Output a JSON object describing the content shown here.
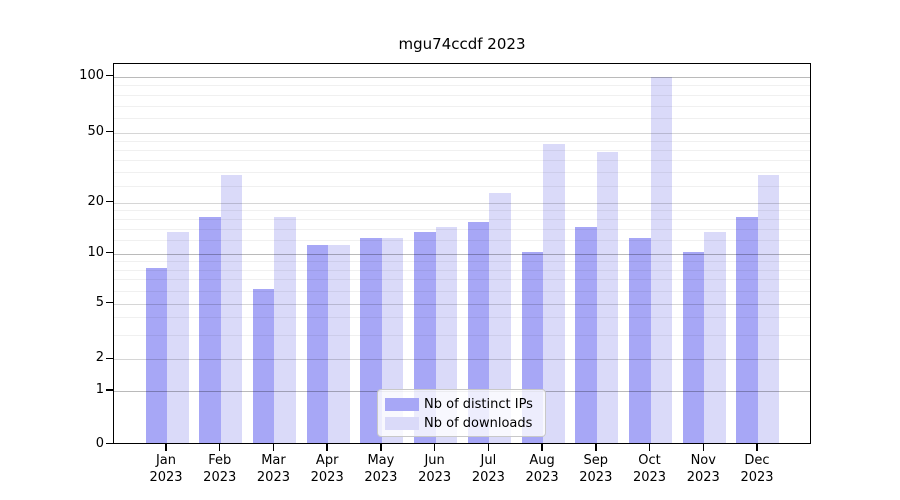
{
  "chart_data": {
    "type": "bar",
    "title": "mgu74ccdf 2023",
    "categories": [
      "Jan",
      "Feb",
      "Mar",
      "Apr",
      "May",
      "Jun",
      "Jul",
      "Aug",
      "Sep",
      "Oct",
      "Nov",
      "Dec"
    ],
    "year": "2023",
    "series": [
      {
        "name": "Nb of distinct IPs",
        "color": "#a7a7f6",
        "values": [
          8,
          16,
          6,
          11,
          12,
          13,
          15,
          10,
          14,
          12,
          10,
          16
        ]
      },
      {
        "name": "Nb of downloads",
        "color": "#dadaf9",
        "values": [
          13,
          28,
          16,
          11,
          12,
          14,
          22,
          42,
          38,
          97,
          13,
          28
        ]
      }
    ],
    "ylabel": "",
    "xlabel": "",
    "ylim": [
      0,
      110
    ],
    "yticks": [
      0,
      1,
      2,
      5,
      10,
      20,
      50,
      100
    ],
    "decade_ticks": [
      1,
      10,
      100
    ],
    "minor_gridlines": [
      3,
      4,
      6,
      7,
      8,
      9,
      12,
      14,
      16,
      18,
      25,
      30,
      35,
      40,
      45,
      60,
      70,
      80,
      90
    ],
    "scale": "logarithmic above 1, linear 0-1",
    "grid": true,
    "legend_position": "lower center"
  }
}
